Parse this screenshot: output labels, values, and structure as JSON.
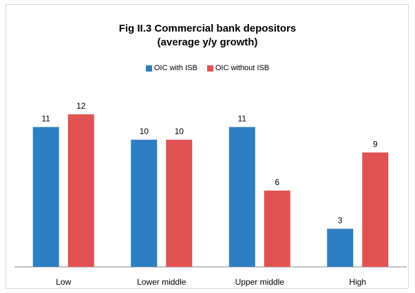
{
  "chart_data": {
    "type": "bar",
    "title_line1": "Fig II.3 Commercial bank depositors",
    "title_line2": "(average y/y growth)",
    "categories": [
      "Low",
      "Lower middle",
      "Upper middle",
      "High"
    ],
    "series": [
      {
        "name": "OIC with  ISB",
        "color": "#2E7FC1",
        "values": [
          11,
          10,
          11,
          3
        ]
      },
      {
        "name": "OIC without  ISB",
        "color": "#E05252",
        "values": [
          12,
          10,
          6,
          9
        ]
      }
    ],
    "data_labels": [
      [
        "11",
        "10",
        "11",
        "3"
      ],
      [
        "12",
        "10",
        "6",
        "9"
      ]
    ],
    "ylim": [
      0,
      14.5
    ],
    "grid": false,
    "legend_position": "top"
  }
}
